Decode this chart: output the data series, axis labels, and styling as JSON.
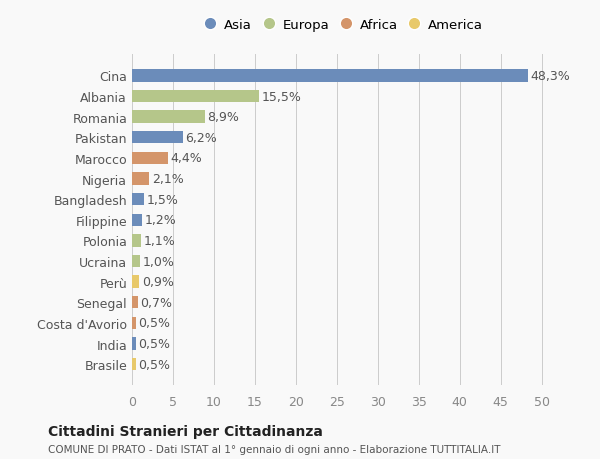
{
  "countries": [
    "Cina",
    "Albania",
    "Romania",
    "Pakistan",
    "Marocco",
    "Nigeria",
    "Bangladesh",
    "Filippine",
    "Polonia",
    "Ucraina",
    "Perù",
    "Senegal",
    "Costa d'Avorio",
    "India",
    "Brasile"
  ],
  "values": [
    48.3,
    15.5,
    8.9,
    6.2,
    4.4,
    2.1,
    1.5,
    1.2,
    1.1,
    1.0,
    0.9,
    0.7,
    0.5,
    0.5,
    0.5
  ],
  "labels": [
    "48,3%",
    "15,5%",
    "8,9%",
    "6,2%",
    "4,4%",
    "2,1%",
    "1,5%",
    "1,2%",
    "1,1%",
    "1,0%",
    "0,9%",
    "0,7%",
    "0,5%",
    "0,5%",
    "0,5%"
  ],
  "colors": [
    "#6b8cba",
    "#b5c68a",
    "#b5c68a",
    "#6b8cba",
    "#d4956a",
    "#d4956a",
    "#6b8cba",
    "#6b8cba",
    "#b5c68a",
    "#b5c68a",
    "#e8c96a",
    "#d4956a",
    "#d4956a",
    "#6b8cba",
    "#e8c96a"
  ],
  "legend": [
    {
      "label": "Asia",
      "color": "#6b8cba"
    },
    {
      "label": "Europa",
      "color": "#b5c68a"
    },
    {
      "label": "Africa",
      "color": "#d4956a"
    },
    {
      "label": "America",
      "color": "#e8c96a"
    }
  ],
  "xlim": [
    0,
    52
  ],
  "xticks": [
    0,
    5,
    10,
    15,
    20,
    25,
    30,
    35,
    40,
    45,
    50
  ],
  "title": "Cittadini Stranieri per Cittadinanza",
  "subtitle": "COMUNE DI PRATO - Dati ISTAT al 1° gennaio di ogni anno - Elaborazione TUTTITALIA.IT",
  "background_color": "#f9f9f9",
  "bar_height": 0.6,
  "label_fontsize": 9,
  "tick_fontsize": 9
}
